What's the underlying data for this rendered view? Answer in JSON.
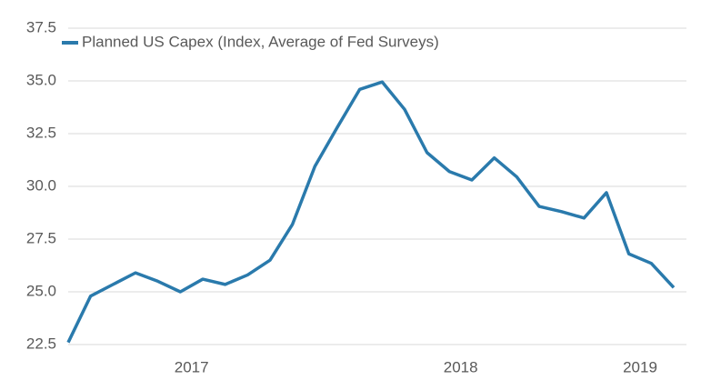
{
  "chart_data": {
    "type": "line",
    "categories": [
      null,
      null,
      null,
      null,
      null,
      null,
      "2017",
      null,
      null,
      null,
      null,
      null,
      null,
      null,
      null,
      null,
      null,
      null,
      "2018",
      null,
      null,
      null,
      null,
      null,
      null,
      null,
      "2019",
      null
    ],
    "series": [
      {
        "name": "Planned US Capex (Index, Average of Fed Surveys)",
        "color": "#2a7aac",
        "values": [
          22.6,
          24.8,
          25.35,
          25.9,
          25.5,
          25.0,
          25.6,
          25.35,
          25.8,
          26.5,
          28.2,
          30.95,
          32.8,
          34.6,
          34.95,
          33.65,
          31.6,
          30.7,
          30.3,
          31.35,
          30.45,
          29.05,
          28.8,
          28.5,
          29.7,
          26.8,
          26.35,
          25.2
        ]
      }
    ],
    "ylim": [
      22.5,
      37.5
    ],
    "yticks": [
      {
        "value": 22.5,
        "label": "22.5"
      },
      {
        "value": 25,
        "label": "25.0"
      },
      {
        "value": 27.5,
        "label": "27.5"
      },
      {
        "value": 30,
        "label": "30.0"
      },
      {
        "value": 32.5,
        "label": "32.5"
      },
      {
        "value": 35,
        "label": "35.0"
      },
      {
        "value": 37.5,
        "label": "37.5"
      }
    ],
    "grid": true,
    "legend": "top-left"
  }
}
